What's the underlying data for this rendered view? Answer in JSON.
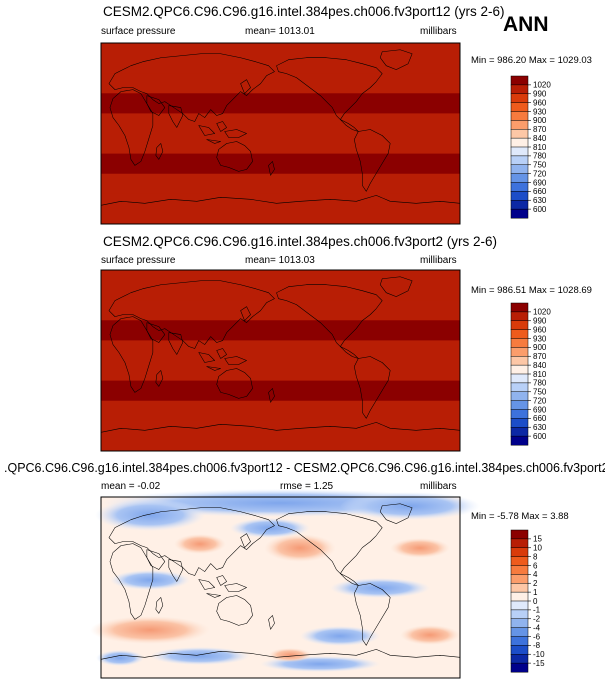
{
  "season_label": "ANN",
  "colors": {
    "map_border": "#000000",
    "coast": "#000000"
  },
  "chart_data": [
    {
      "type": "heatmap",
      "title": "CESM2.QPC6.C96.C96.g16.intel.384pes.ch006.fv3port12 (yrs 2-6)",
      "variable": "surface pressure",
      "mean_label": "mean= 1013.01",
      "units": "millibars",
      "minmax_label": "Min = 986.20 Max = 1029.03",
      "colorbar": {
        "levels": [
          "1020",
          "990",
          "960",
          "930",
          "900",
          "870",
          "840",
          "810",
          "780",
          "750",
          "720",
          "690",
          "660",
          "630",
          "600"
        ],
        "colors": [
          "#8b0000",
          "#b81e05",
          "#d93b0a",
          "#ee5b1c",
          "#f77b3e",
          "#fb9d6b",
          "#fdc7a6",
          "#fff0e6",
          "#dfe9fb",
          "#b8d0f7",
          "#90b3ee",
          "#6594e6",
          "#3d72dc",
          "#1c4dc8",
          "#0c28a5",
          "#00008b"
        ]
      },
      "bands": [
        {
          "lat_from": 90,
          "lat_to": 60,
          "value": 1010
        },
        {
          "lat_from": 60,
          "lat_to": 40,
          "value": 1000
        },
        {
          "lat_from": 40,
          "lat_to": 20,
          "value": 1022
        },
        {
          "lat_from": 20,
          "lat_to": 0,
          "value": 1010
        },
        {
          "lat_from": 0,
          "lat_to": -20,
          "value": 1010
        },
        {
          "lat_from": -20,
          "lat_to": -40,
          "value": 1022
        },
        {
          "lat_from": -40,
          "lat_to": -60,
          "value": 1000
        },
        {
          "lat_from": -60,
          "lat_to": -90,
          "value": 990
        }
      ]
    },
    {
      "type": "heatmap",
      "title": "CESM2.QPC6.C96.C96.g16.intel.384pes.ch006.fv3port2 (yrs 2-6)",
      "variable": "surface pressure",
      "mean_label": "mean= 1013.03",
      "units": "millibars",
      "minmax_label": "Min = 986.51 Max = 1028.69",
      "colorbar": {
        "levels": [
          "1020",
          "990",
          "960",
          "930",
          "900",
          "870",
          "840",
          "810",
          "780",
          "750",
          "720",
          "690",
          "660",
          "630",
          "600"
        ],
        "colors": [
          "#8b0000",
          "#b81e05",
          "#d93b0a",
          "#ee5b1c",
          "#f77b3e",
          "#fb9d6b",
          "#fdc7a6",
          "#fff0e6",
          "#dfe9fb",
          "#b8d0f7",
          "#90b3ee",
          "#6594e6",
          "#3d72dc",
          "#1c4dc8",
          "#0c28a5",
          "#00008b"
        ]
      },
      "bands": [
        {
          "lat_from": 90,
          "lat_to": 60,
          "value": 1010
        },
        {
          "lat_from": 60,
          "lat_to": 40,
          "value": 1000
        },
        {
          "lat_from": 40,
          "lat_to": 20,
          "value": 1022
        },
        {
          "lat_from": 20,
          "lat_to": 0,
          "value": 1010
        },
        {
          "lat_from": 0,
          "lat_to": -20,
          "value": 1010
        },
        {
          "lat_from": -20,
          "lat_to": -40,
          "value": 1022
        },
        {
          "lat_from": -40,
          "lat_to": -60,
          "value": 1000
        },
        {
          "lat_from": -60,
          "lat_to": -90,
          "value": 990
        }
      ]
    },
    {
      "type": "heatmap",
      "title": ".QPC6.C96.C96.g16.intel.384pes.ch006.fv3port12 - CESM2.QPC6.C96.C96.g16.intel.384pes.ch006.fv3port2",
      "mean_label": "mean =  -0.02",
      "rmse_label": "rmse =   1.25",
      "units": "millibars",
      "minmax_label": "Min = -5.78 Max =   3.88",
      "colorbar": {
        "levels": [
          "15",
          "10",
          "8",
          "6",
          "4",
          "2",
          "1",
          "0",
          "-1",
          "-2",
          "-4",
          "-6",
          "-8",
          "-10",
          "-15"
        ],
        "colors": [
          "#8b0000",
          "#b81e05",
          "#d93b0a",
          "#ee5b1c",
          "#f77b3e",
          "#fb9d6b",
          "#fdc7a6",
          "#fff0e6",
          "#dfe9fb",
          "#b8d0f7",
          "#90b3ee",
          "#6594e6",
          "#3d72dc",
          "#1c4dc8",
          "#0c28a5",
          "#00008b"
        ]
      }
    }
  ]
}
